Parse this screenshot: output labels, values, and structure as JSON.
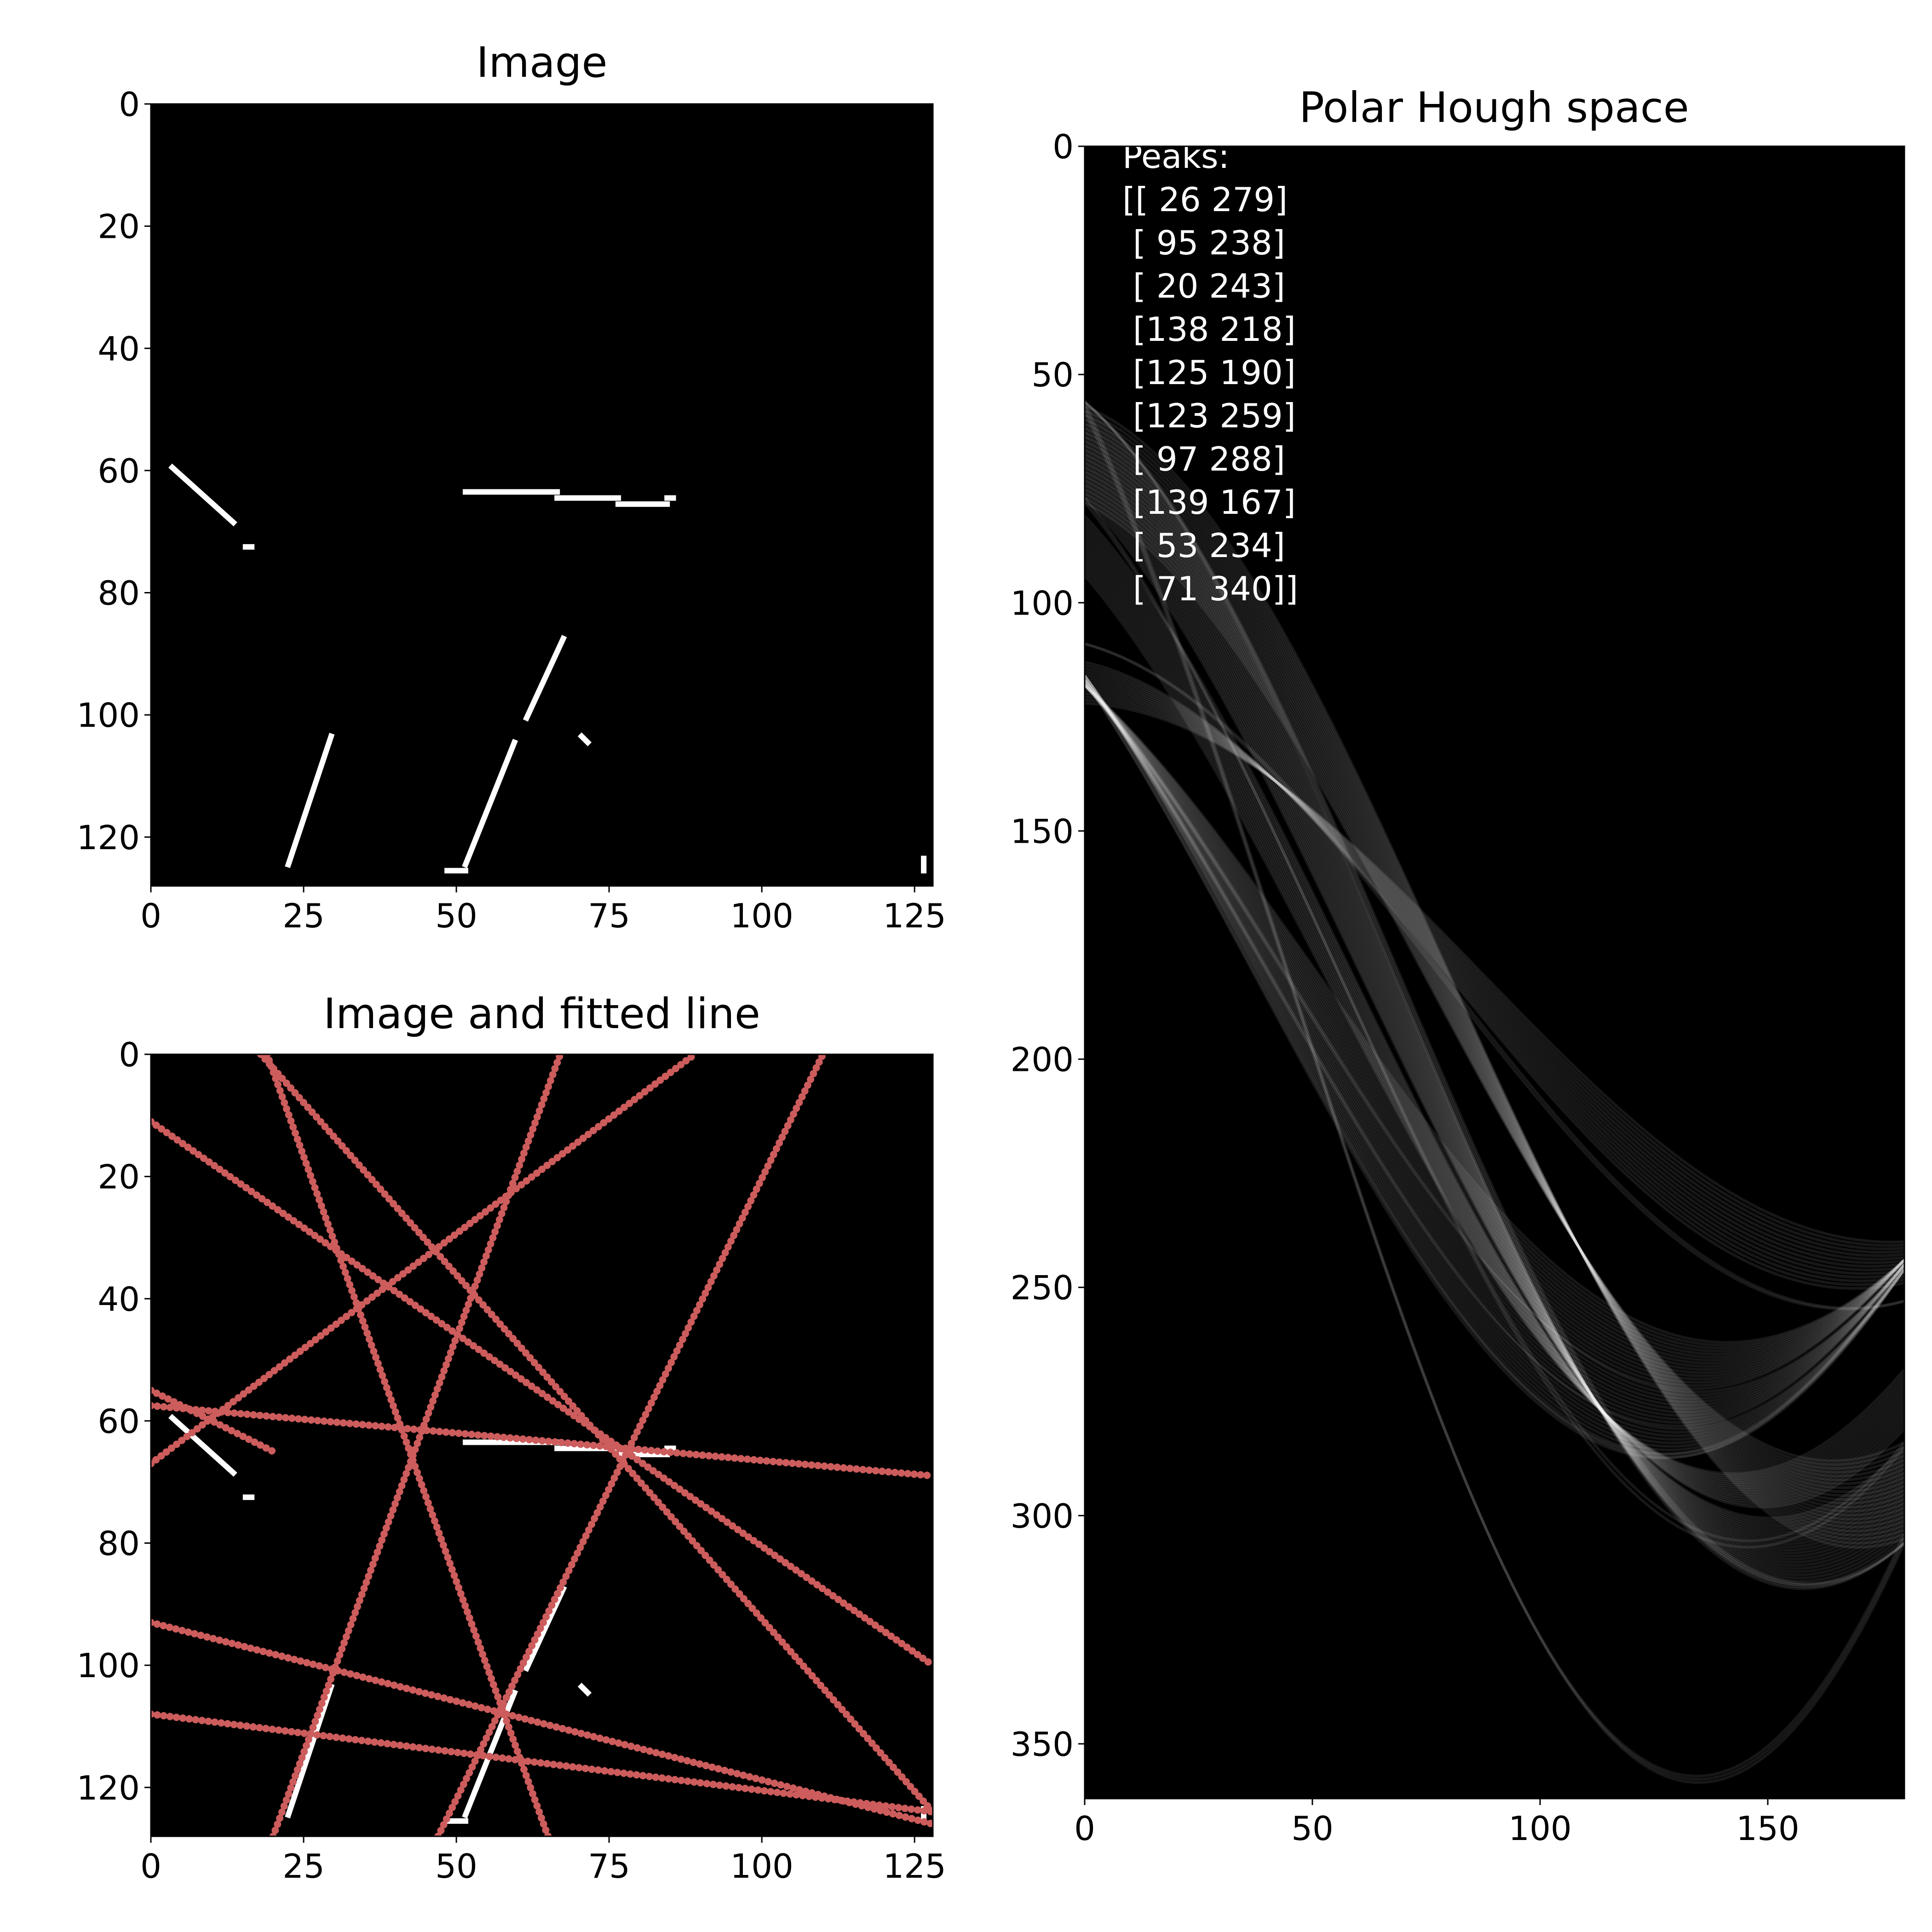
{
  "chart_data": [
    {
      "type": "image",
      "title": "Image",
      "xlim": [
        0,
        128
      ],
      "ylim": [
        128,
        0
      ],
      "xticks": [
        "0",
        "25",
        "50",
        "75",
        "100",
        "125"
      ],
      "yticks": [
        "0",
        "20",
        "40",
        "60",
        "80",
        "100",
        "120"
      ],
      "segments": [
        {
          "x1": 3,
          "y1": 59,
          "x2": 13,
          "y2": 68
        },
        {
          "x1": 15,
          "y1": 72,
          "x2": 16,
          "y2": 72
        },
        {
          "x1": 51,
          "y1": 63,
          "x2": 66,
          "y2": 63
        },
        {
          "x1": 66,
          "y1": 64,
          "x2": 76,
          "y2": 64
        },
        {
          "x1": 76,
          "y1": 65,
          "x2": 84,
          "y2": 65
        },
        {
          "x1": 84,
          "y1": 64,
          "x2": 85,
          "y2": 64
        },
        {
          "x1": 22,
          "y1": 124,
          "x2": 29,
          "y2": 103
        },
        {
          "x1": 48,
          "y1": 125,
          "x2": 51,
          "y2": 125
        },
        {
          "x1": 51,
          "y1": 124,
          "x2": 59,
          "y2": 104
        },
        {
          "x1": 61,
          "y1": 100,
          "x2": 67,
          "y2": 87
        },
        {
          "x1": 70,
          "y1": 103,
          "x2": 71,
          "y2": 104
        },
        {
          "x1": 126,
          "y1": 123,
          "x2": 126,
          "y2": 125
        }
      ]
    },
    {
      "type": "image",
      "title": "Image and fitted line",
      "xlim": [
        0,
        128
      ],
      "ylim": [
        128,
        0
      ],
      "xticks": [
        "0",
        "25",
        "50",
        "75",
        "100",
        "125"
      ],
      "yticks": [
        "0",
        "20",
        "40",
        "60",
        "80",
        "100",
        "120"
      ],
      "fitted_lines": [
        {
          "x1": 0,
          "y1": 57.5,
          "x2": 128,
          "y2": 69
        },
        {
          "x1": 0,
          "y1": 108,
          "x2": 128,
          "y2": 124
        },
        {
          "x1": 0,
          "y1": 11,
          "x2": 128,
          "y2": 100
        },
        {
          "x1": 0,
          "y1": 93,
          "x2": 128,
          "y2": 126
        },
        {
          "x1": 0,
          "y1": 67,
          "x2": 89,
          "y2": 0
        },
        {
          "x1": 18,
          "y1": 0,
          "x2": 128,
          "y2": 124
        },
        {
          "x1": 20,
          "y1": 128,
          "x2": 67,
          "y2": 0
        },
        {
          "x1": 47,
          "y1": 128,
          "x2": 110,
          "y2": 0
        },
        {
          "x1": 19,
          "y1": 0,
          "x2": 65,
          "y2": 128
        },
        {
          "x1": 0,
          "y1": 55,
          "x2": 20,
          "y2": 65
        }
      ]
    },
    {
      "type": "heatmap",
      "title": "Polar Hough space",
      "xlim": [
        0,
        180
      ],
      "ylim": [
        362,
        0
      ],
      "xticks": [
        "0",
        "50",
        "100",
        "150"
      ],
      "yticks": [
        "0",
        "50",
        "100",
        "150",
        "200",
        "250",
        "300",
        "350"
      ],
      "annotation": [
        "Peaks:",
        "[[ 26 279]",
        " [ 95 238]",
        " [ 20 243]",
        " [138 218]",
        " [125 190]",
        " [123 259]",
        " [ 97 288]",
        " [139 167]",
        " [ 53 234]",
        " [ 71 340]]"
      ],
      "peaks": [
        [
          26,
          279
        ],
        [
          95,
          238
        ],
        [
          20,
          243
        ],
        [
          138,
          218
        ],
        [
          125,
          190
        ],
        [
          123,
          259
        ],
        [
          97,
          288
        ],
        [
          139,
          167
        ],
        [
          53,
          234
        ],
        [
          71,
          340
        ]
      ]
    }
  ],
  "colors": {
    "line": "#cd5c5c",
    "background": "#000000",
    "pixel": "#ffffff"
  }
}
